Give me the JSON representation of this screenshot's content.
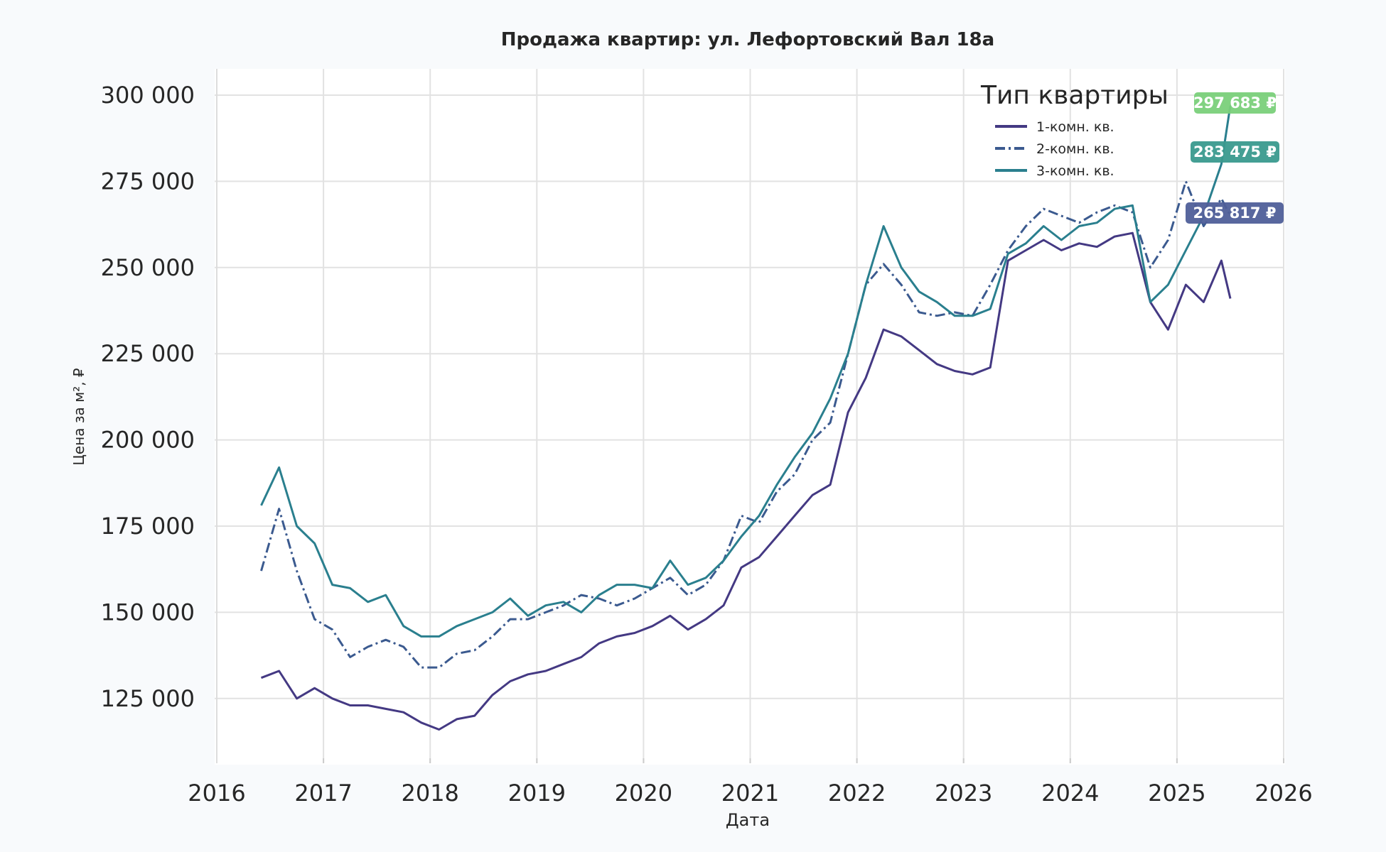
{
  "chart_data": {
    "type": "line",
    "title": "Продажа квартир: ул. Лефортовский Вал 18а",
    "xlabel": "Дата",
    "ylabel": "Цена за м², ₽",
    "xlim": [
      "2016-01",
      "2026-01"
    ],
    "ylim": [
      106000,
      307500
    ],
    "grid": true,
    "x_ticks": [
      "2016",
      "2017",
      "2018",
      "2019",
      "2020",
      "2021",
      "2022",
      "2023",
      "2024",
      "2025",
      "2026"
    ],
    "y_ticks": [
      125000,
      150000,
      175000,
      200000,
      225000,
      250000,
      275000,
      300000
    ],
    "y_tick_labels": [
      "125 000",
      "150 000",
      "175 000",
      "200 000",
      "225 000",
      "250 000",
      "275 000",
      "300 000"
    ],
    "legend": {
      "title": "Тип квартиры",
      "placement": "top-right"
    },
    "x": [
      "2016-06",
      "2016-08",
      "2016-10",
      "2016-12",
      "2017-02",
      "2017-04",
      "2017-06",
      "2017-08",
      "2017-10",
      "2017-12",
      "2018-02",
      "2018-04",
      "2018-06",
      "2018-08",
      "2018-10",
      "2018-12",
      "2019-02",
      "2019-04",
      "2019-06",
      "2019-08",
      "2019-10",
      "2019-12",
      "2020-02",
      "2020-04",
      "2020-06",
      "2020-08",
      "2020-10",
      "2020-12",
      "2021-02",
      "2021-04",
      "2021-06",
      "2021-08",
      "2021-10",
      "2021-12",
      "2022-02",
      "2022-04",
      "2022-06",
      "2022-08",
      "2022-10",
      "2022-12",
      "2023-02",
      "2023-04",
      "2023-06",
      "2023-08",
      "2023-10",
      "2023-12",
      "2024-02",
      "2024-04",
      "2024-06",
      "2024-08",
      "2024-10",
      "2024-12",
      "2025-02",
      "2025-04",
      "2025-06",
      "2025-07"
    ],
    "series": [
      {
        "name": "1-комн. кв.",
        "color": "#443983",
        "dash": "solid",
        "values": [
          131000,
          133000,
          125000,
          128000,
          125000,
          123000,
          123000,
          122000,
          121000,
          118000,
          116000,
          119000,
          120000,
          126000,
          130000,
          132000,
          133000,
          135000,
          137000,
          141000,
          143000,
          144000,
          146000,
          149000,
          145000,
          148000,
          152000,
          163000,
          166000,
          172000,
          178000,
          184000,
          187000,
          208000,
          218000,
          232000,
          230000,
          226000,
          222000,
          220000,
          219000,
          221000,
          252000,
          255000,
          258000,
          255000,
          257000,
          256000,
          259000,
          260000,
          240000,
          232000,
          245000,
          240000,
          252000,
          241000
        ]
      },
      {
        "name": "2-комн. кв.",
        "color": "#3b5a8f",
        "dash": "dashdot",
        "values": [
          162000,
          180000,
          162000,
          148000,
          145000,
          137000,
          140000,
          142000,
          140000,
          134000,
          134000,
          138000,
          139000,
          143000,
          148000,
          148000,
          150000,
          152000,
          155000,
          154000,
          152000,
          154000,
          157000,
          160000,
          155000,
          158000,
          165000,
          178000,
          176000,
          185000,
          190000,
          200000,
          205000,
          225000,
          245000,
          251000,
          245000,
          237000,
          236000,
          237000,
          236000,
          245000,
          255000,
          262000,
          267000,
          265000,
          263000,
          266000,
          268000,
          266000,
          250000,
          258000,
          275000,
          262000,
          270000,
          265000
        ]
      },
      {
        "name": "3-комн. кв.",
        "color": "#2a7f8e",
        "dash": "solid",
        "values": [
          181000,
          192000,
          175000,
          170000,
          158000,
          157000,
          153000,
          155000,
          146000,
          143000,
          143000,
          146000,
          148000,
          150000,
          154000,
          149000,
          152000,
          153000,
          150000,
          155000,
          158000,
          158000,
          157000,
          165000,
          158000,
          160000,
          165000,
          172000,
          178000,
          187000,
          195000,
          202000,
          212000,
          225000,
          245000,
          262000,
          250000,
          243000,
          240000,
          236000,
          236000,
          238000,
          254000,
          257000,
          262000,
          258000,
          262000,
          263000,
          267000,
          268000,
          240000,
          245000,
          255000,
          265000,
          280000,
          297000
        ]
      }
    ],
    "annotations": [
      {
        "text": "297 683 ₽",
        "value": 297683,
        "color": "#7ad07a"
      },
      {
        "text": "283 475 ₽",
        "value": 283475,
        "color": "#3a9a8e"
      },
      {
        "text": "265 817 ₽",
        "value": 265817,
        "color": "#4f5f99"
      }
    ]
  }
}
